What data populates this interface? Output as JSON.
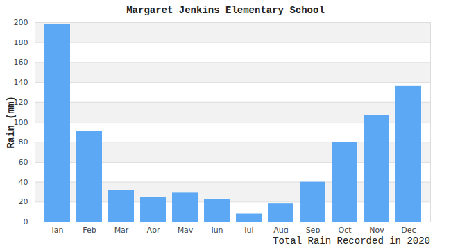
{
  "chart_data": {
    "type": "bar",
    "title": "Margaret Jenkins Elementary School",
    "x_label": "Total Rain Recorded in 2020",
    "y_label": "Rain (mm)",
    "categories": [
      "Jan",
      "Feb",
      "Mar",
      "Apr",
      "May",
      "Jun",
      "Jul",
      "Aug",
      "Sep",
      "Oct",
      "Nov",
      "Dec"
    ],
    "values": [
      198,
      91,
      32,
      25,
      29,
      23,
      8,
      18,
      40,
      80,
      107,
      136
    ],
    "color": "#5ca8f5",
    "ylim": [
      0,
      200
    ],
    "yticks": [
      0,
      20,
      40,
      60,
      80,
      100,
      120,
      140,
      160,
      180,
      200
    ],
    "grid": true
  }
}
